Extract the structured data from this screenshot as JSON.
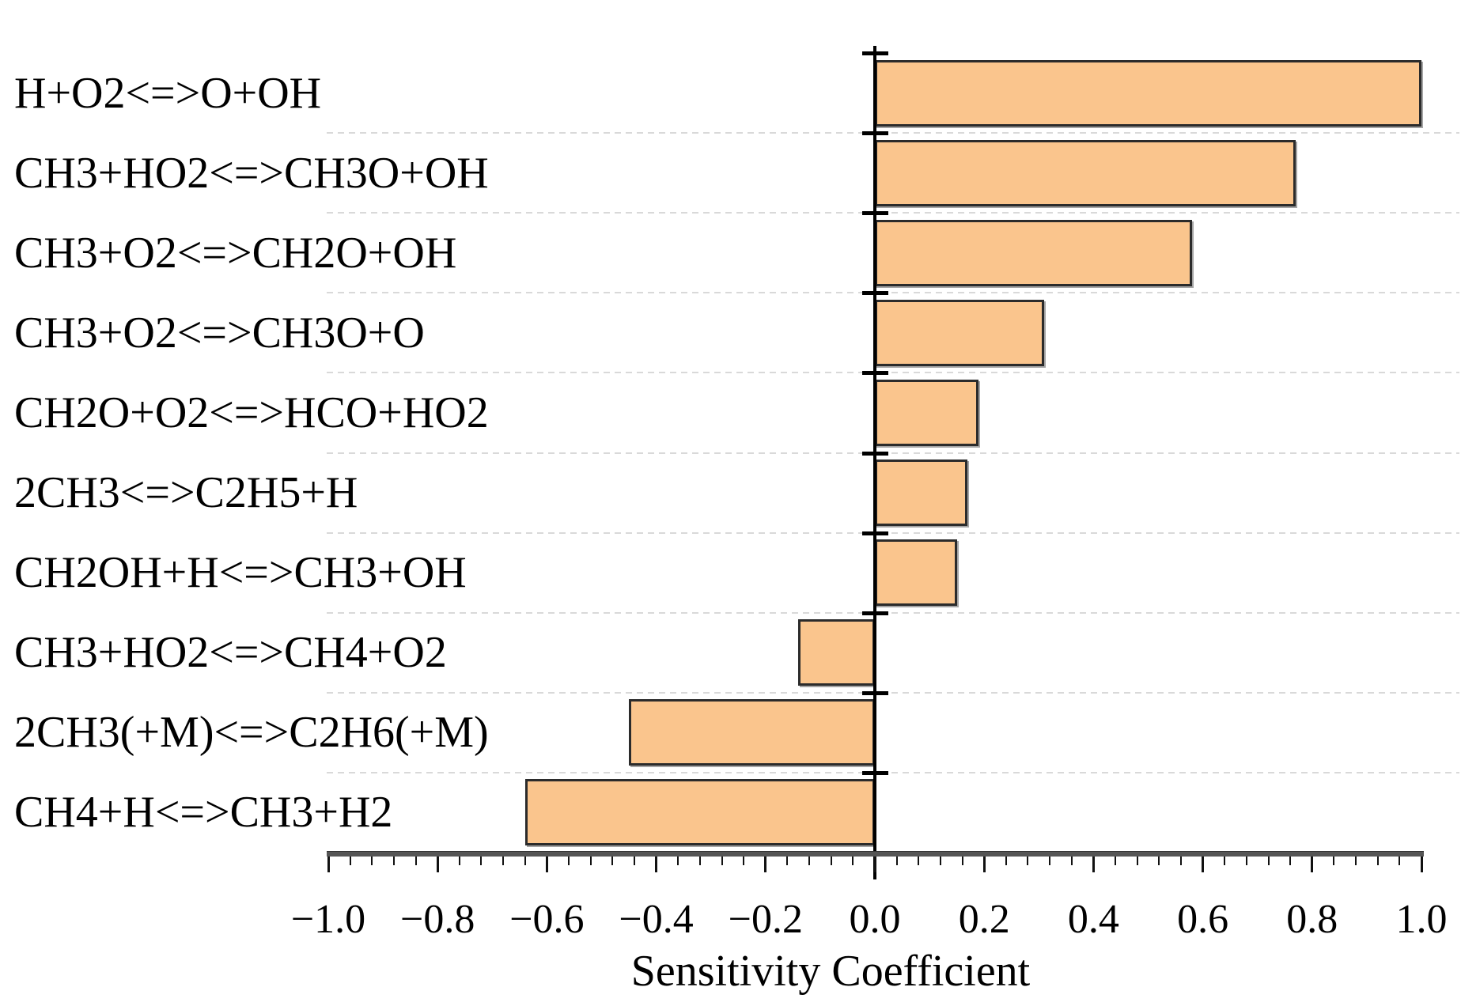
{
  "chart_data": {
    "type": "bar",
    "orientation": "horizontal",
    "xlabel": "Sensitivity Coefficient",
    "xlim": [
      -1.0,
      1.0
    ],
    "x_major_tick_step": 0.2,
    "x_minor_tick_step": 0.04,
    "x_tick_labels": [
      "−1.0",
      "−0.8",
      "−0.6",
      "−0.4",
      "−0.2",
      "0.0",
      "0.2",
      "0.4",
      "0.6",
      "0.8",
      "1.0"
    ],
    "grid": "horizontal dashed lines between category rows",
    "legend": "none",
    "categories": [
      "H+O2<=>O+OH",
      "CH3+HO2<=>CH3O+OH",
      "CH3+O2<=>CH2O+OH",
      "CH3+O2<=>CH3O+O",
      "CH2O+O2<=>HCO+HO2",
      "2CH3<=>C2H5+H",
      "CH2OH+H<=>CH3+OH",
      "CH3+HO2<=>CH4+O2",
      "2CH3(+M)<=>C2H6(+M)",
      "CH4+H<=>CH3+H2"
    ],
    "values": [
      1.0,
      0.77,
      0.58,
      0.31,
      0.19,
      0.17,
      0.15,
      -0.14,
      -0.45,
      -0.64
    ],
    "colors": {
      "bar_fill": "#FAC58D",
      "bar_border": "#2B2B2B",
      "axis": "#000000",
      "x_axis_line": "#555555",
      "gridline": "#D9D9D9",
      "text": "#000000",
      "background": "#FFFFFF"
    }
  }
}
